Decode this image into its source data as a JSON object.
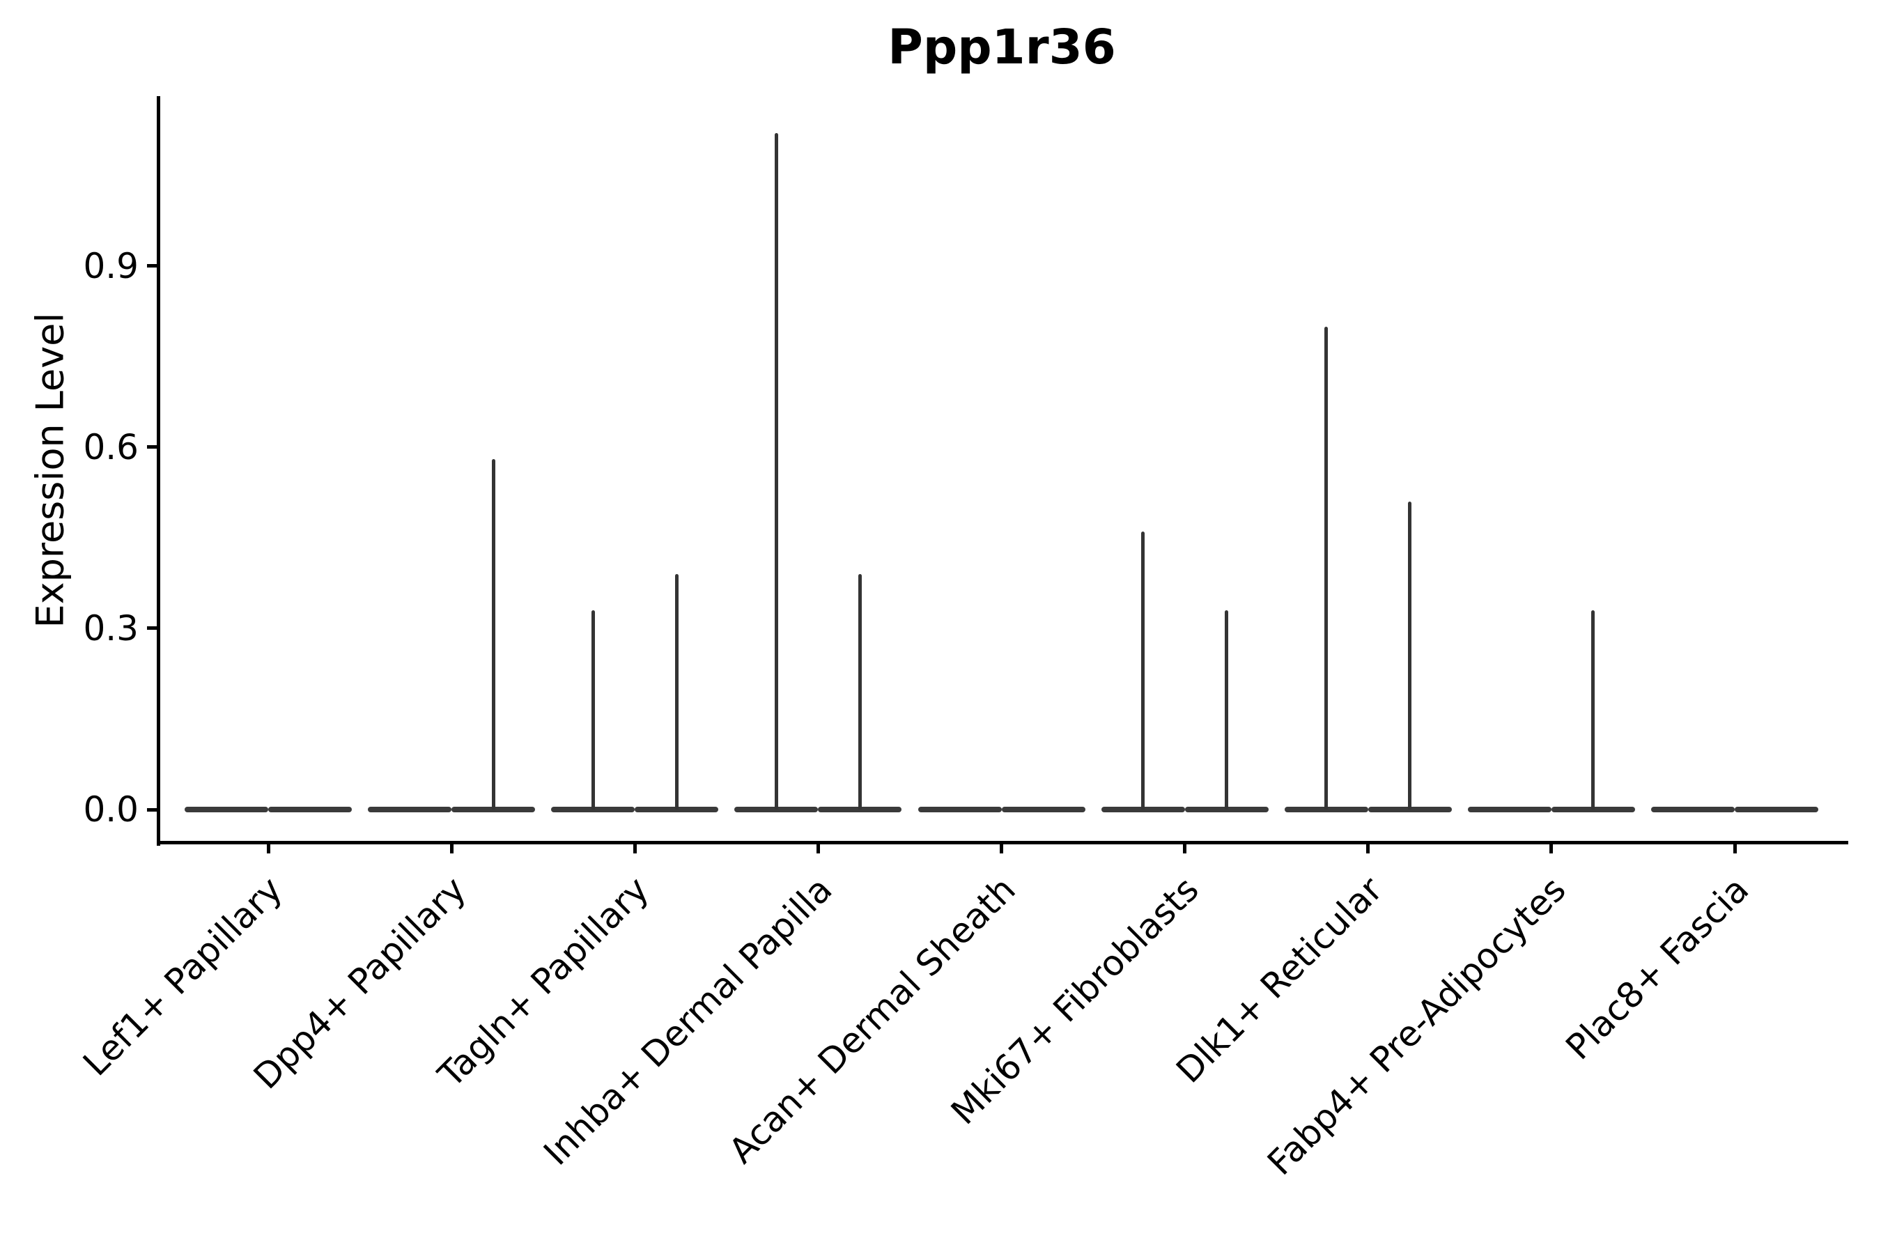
{
  "figure": {
    "title": "Ppp1r36",
    "ylabel": "Expression Level"
  },
  "chart_data": {
    "type": "violin",
    "title": "Ppp1r36",
    "xlabel": "",
    "ylabel": "Expression Level",
    "categories": [
      "Lef1+ Papillary",
      "Dpp4+ Papillary",
      "Tagln+ Papillary",
      "Inhba+ Dermal Papilla",
      "Acan+ Dermal Sheath",
      "Mki67+ Fibroblasts",
      "Dlk1+ Reticular",
      "Fabp4+ Pre-Adipocytes",
      "Plac8+ Fascia"
    ],
    "series": [
      {
        "name": "left-violin-per-category",
        "description": "max expression reached by thin density spike; 0 means fully flat violin at zero",
        "max_values": [
          0,
          0,
          0.33,
          1.12,
          0,
          0.46,
          0.8,
          0,
          0
        ]
      },
      {
        "name": "right-violin-per-category",
        "description": "max expression reached by thin density spike; 0 means fully flat violin at zero",
        "max_values": [
          0,
          0.58,
          0.39,
          0.39,
          0,
          0.33,
          0.51,
          0.33,
          0
        ]
      }
    ],
    "yticks": [
      "0.0",
      "0.3",
      "0.6",
      "0.9"
    ],
    "ytick_values": [
      0.0,
      0.3,
      0.6,
      0.9
    ],
    "ylim": [
      -0.054,
      1.18
    ],
    "grid": false,
    "legend": "none",
    "line_color": "#3a3a3a",
    "axis_color": "#000000",
    "background_color": "#ffffff",
    "xtick_rotation_deg": 45
  }
}
